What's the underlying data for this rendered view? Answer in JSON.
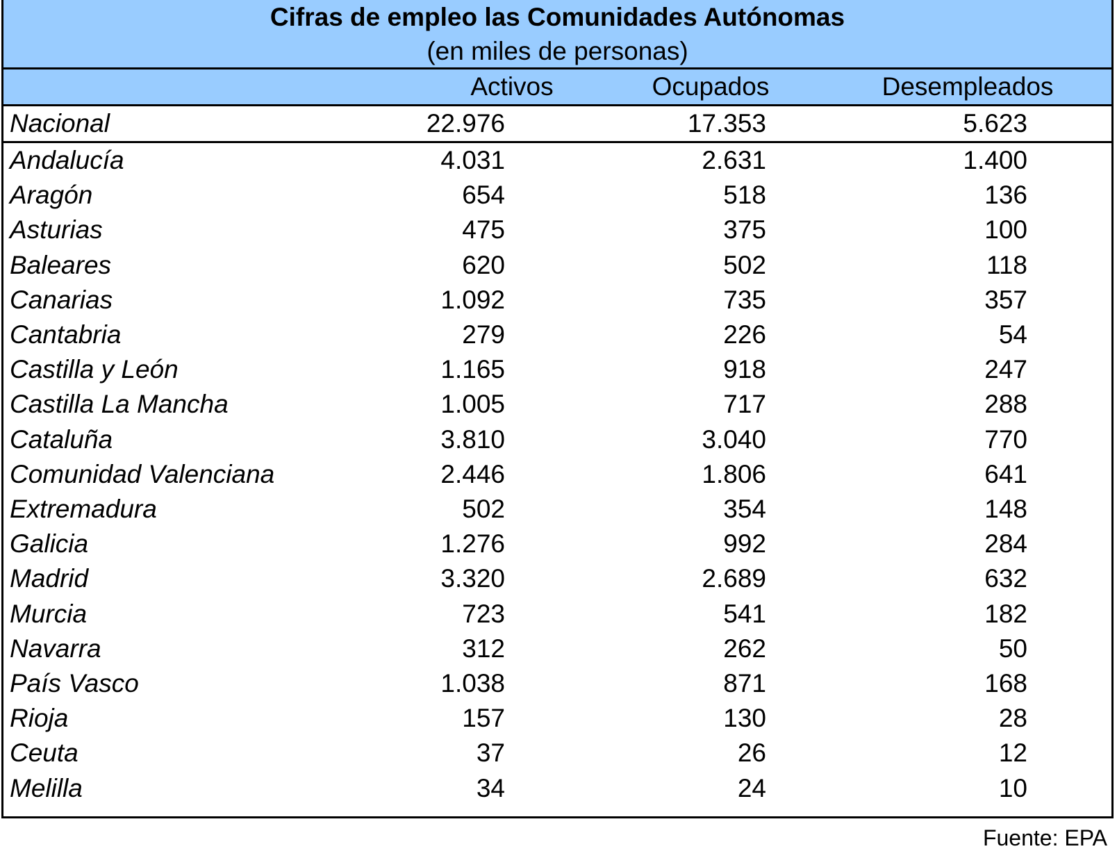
{
  "chart_data": {
    "type": "table",
    "title": "Cifras de empleo las Comunidades Autónomas",
    "subtitle": "(en miles de personas)",
    "columns": [
      "Activos",
      "Ocupados",
      "Desempleados"
    ],
    "national": {
      "name": "Nacional",
      "values": [
        "22.976",
        "17.353",
        "5.623"
      ]
    },
    "rows": [
      {
        "name": "Andalucía",
        "values": [
          "4.031",
          "2.631",
          "1.400"
        ]
      },
      {
        "name": "Aragón",
        "values": [
          "654",
          "518",
          "136"
        ]
      },
      {
        "name": "Asturias",
        "values": [
          "475",
          "375",
          "100"
        ]
      },
      {
        "name": "Baleares",
        "values": [
          "620",
          "502",
          "118"
        ]
      },
      {
        "name": "Canarias",
        "values": [
          "1.092",
          "735",
          "357"
        ]
      },
      {
        "name": "Cantabria",
        "values": [
          "279",
          "226",
          "54"
        ]
      },
      {
        "name": "Castilla y León",
        "values": [
          "1.165",
          "918",
          "247"
        ]
      },
      {
        "name": "Castilla La Mancha",
        "values": [
          "1.005",
          "717",
          "288"
        ]
      },
      {
        "name": "Cataluña",
        "values": [
          "3.810",
          "3.040",
          "770"
        ]
      },
      {
        "name": "Comunidad Valenciana",
        "values": [
          "2.446",
          "1.806",
          "641"
        ]
      },
      {
        "name": "Extremadura",
        "values": [
          "502",
          "354",
          "148"
        ]
      },
      {
        "name": "Galicia",
        "values": [
          "1.276",
          "992",
          "284"
        ]
      },
      {
        "name": "Madrid",
        "values": [
          "3.320",
          "2.689",
          "632"
        ]
      },
      {
        "name": "Murcia",
        "values": [
          "723",
          "541",
          "182"
        ]
      },
      {
        "name": "Navarra",
        "values": [
          "312",
          "262",
          "50"
        ]
      },
      {
        "name": "País Vasco",
        "values": [
          "1.038",
          "871",
          "168"
        ]
      },
      {
        "name": "Rioja",
        "values": [
          "157",
          "130",
          "28"
        ]
      },
      {
        "name": "Ceuta",
        "values": [
          "37",
          "26",
          "12"
        ]
      },
      {
        "name": "Melilla",
        "values": [
          "34",
          "24",
          "10"
        ]
      }
    ],
    "source": "Fuente: EPA",
    "header_color": "#99ccff"
  }
}
